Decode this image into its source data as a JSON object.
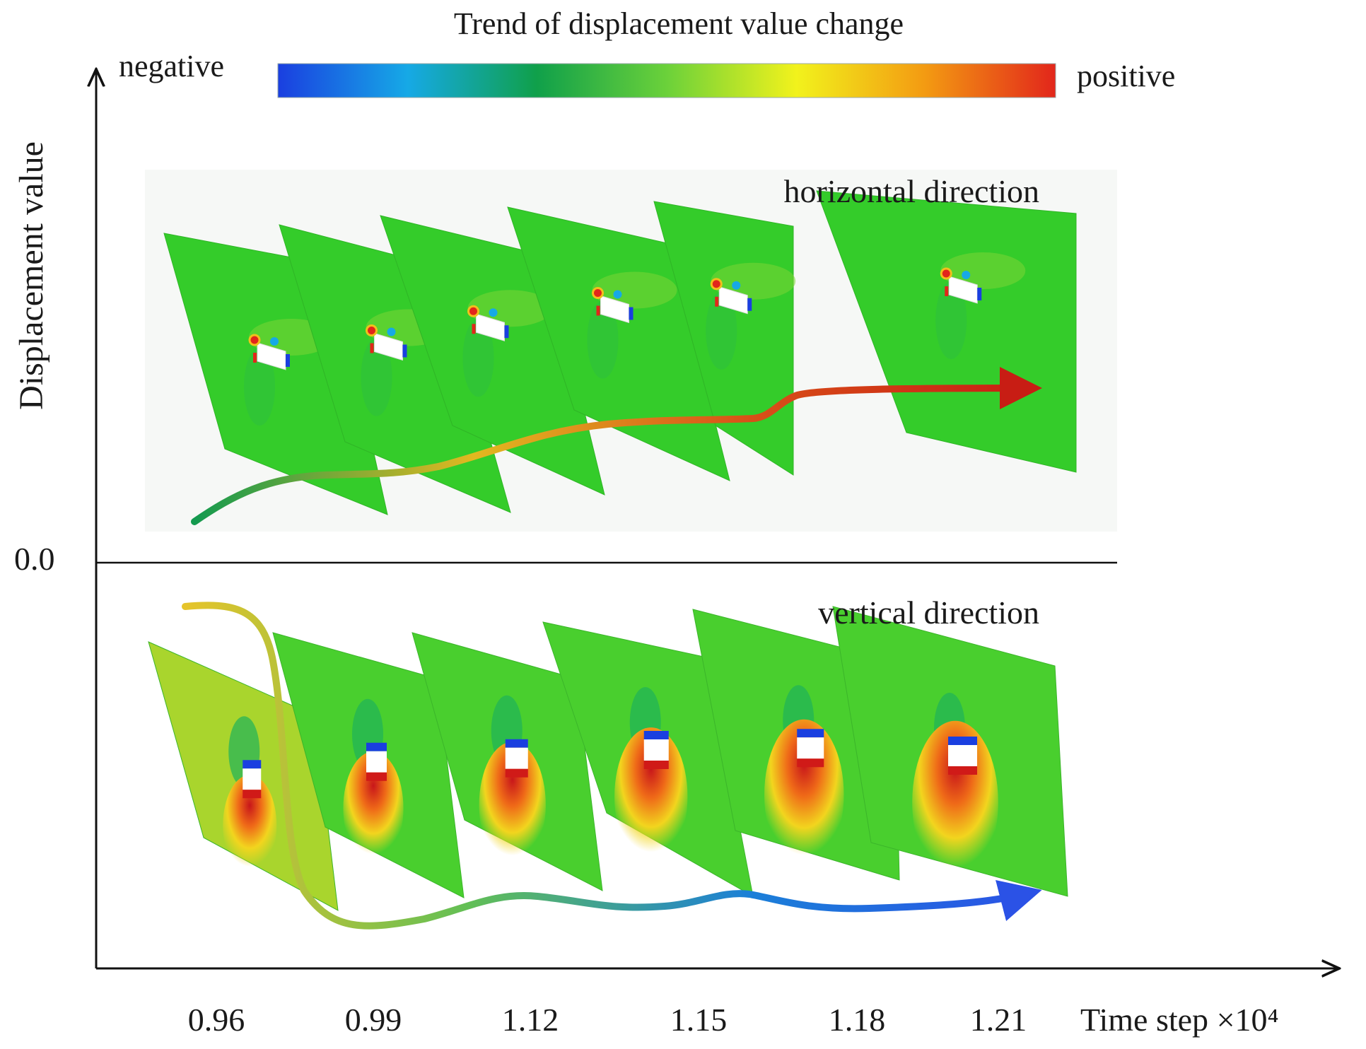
{
  "colorbar": {
    "title": "Trend of displacement value change",
    "low_label": "negative",
    "high_label": "positive",
    "colors": [
      "#1a3fe0",
      "#16a9e6",
      "#10a04a",
      "#6bd13a",
      "#f2f21c",
      "#f39a12",
      "#e2261b"
    ]
  },
  "axes": {
    "ylabel": "Displacement value",
    "zero_label": "0.0",
    "xlabel": "Time step",
    "xlabel_unit": "×10⁴",
    "xticks": [
      "0.96",
      "0.99",
      "1.12",
      "1.15",
      "1.18",
      "1.21"
    ]
  },
  "panels": {
    "horizontal": {
      "label": "horizontal direction",
      "field_color": "#34cc2a",
      "trend_colors": [
        "#139a4f",
        "#e2b820",
        "#d84f18",
        "#c81d14"
      ]
    },
    "vertical": {
      "label": "vertical direction",
      "field_color": "#49cf2e",
      "first_field_color": "#a9d52d",
      "trend_colors": [
        "#e6c42a",
        "#62bf55",
        "#1b7fd8",
        "#2b52e6"
      ]
    }
  }
}
